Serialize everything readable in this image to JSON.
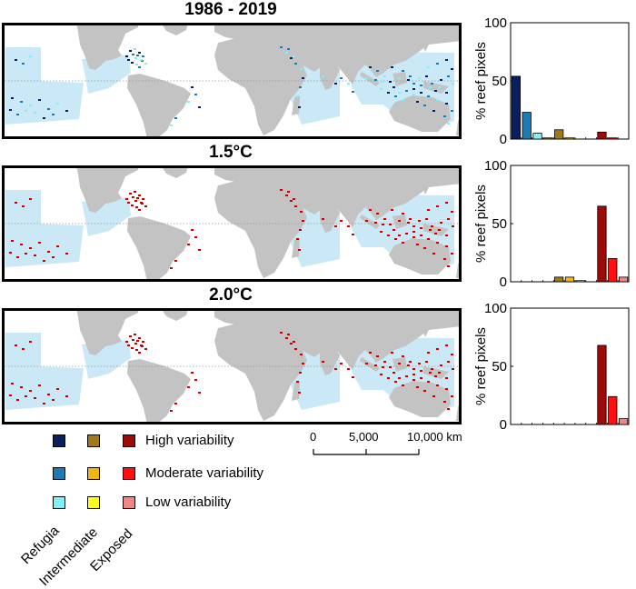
{
  "panels": [
    {
      "title": "1986 - 2019",
      "scheme": "present"
    },
    {
      "title": "1.5°C",
      "scheme": "warm"
    },
    {
      "title": "2.0°C",
      "scheme": "warm"
    }
  ],
  "legend": {
    "rows": [
      {
        "label": "High variability",
        "colors": [
          "#0b1e5e",
          "#9e7a1a",
          "#9c0a0a"
        ]
      },
      {
        "label": "Moderate variability",
        "colors": [
          "#1e7bb2",
          "#f1b514",
          "#ff1010"
        ]
      },
      {
        "label": "Low variability",
        "colors": [
          "#7ff0f5",
          "#ffff19",
          "#f08585"
        ]
      }
    ],
    "columns": [
      "Refugia",
      "Intermediate",
      "Exposed"
    ]
  },
  "scale_bar": {
    "labels": [
      "0",
      "5,000",
      "10,000 km"
    ]
  },
  "colors": {
    "land": "#c3c3c3",
    "ocean_region": "#cbe8f6",
    "equator": "#999999",
    "frame": "#000000",
    "reef_present_dark": "#0b1e5e",
    "reef_present_mid": "#1e7bb2",
    "reef_present_light": "#7ff0f5",
    "reef_warm": "#c80000"
  },
  "chart_data": [
    {
      "type": "bar",
      "ylabel": "% reef pixels",
      "ylim": [
        0,
        100
      ],
      "yticks": [
        0,
        50,
        100
      ],
      "values": [
        54,
        23,
        5,
        1,
        8,
        1,
        0,
        0,
        6,
        1,
        0
      ],
      "colors": [
        "#0b1e5e",
        "#1e7bb2",
        "#7ff0f5",
        "#9e7a1a",
        "#9e7a1a",
        "#f1b514",
        "#ffff19",
        "#9c0a0a",
        "#9c0a0a",
        "#ff1010",
        "#f08585"
      ]
    },
    {
      "type": "bar",
      "ylabel": "% reef pixels",
      "ylim": [
        0,
        100
      ],
      "yticks": [
        0,
        50,
        100
      ],
      "values": [
        0,
        0,
        0,
        0,
        4,
        4,
        1,
        0,
        65,
        20,
        4
      ],
      "colors": [
        "#0b1e5e",
        "#1e7bb2",
        "#7ff0f5",
        "#9e7a1a",
        "#9e7a1a",
        "#f1b514",
        "#ffff19",
        "#9c0a0a",
        "#9c0a0a",
        "#ff1010",
        "#f08585"
      ]
    },
    {
      "type": "bar",
      "ylabel": "% reef pixels",
      "ylim": [
        0,
        100
      ],
      "yticks": [
        0,
        50,
        100
      ],
      "values": [
        0,
        0,
        0,
        0,
        0,
        0,
        0,
        0,
        68,
        24,
        5
      ],
      "colors": [
        "#0b1e5e",
        "#1e7bb2",
        "#7ff0f5",
        "#9e7a1a",
        "#9e7a1a",
        "#f1b514",
        "#ffff19",
        "#9c0a0a",
        "#9c0a0a",
        "#ff1010",
        "#f08585"
      ]
    }
  ]
}
